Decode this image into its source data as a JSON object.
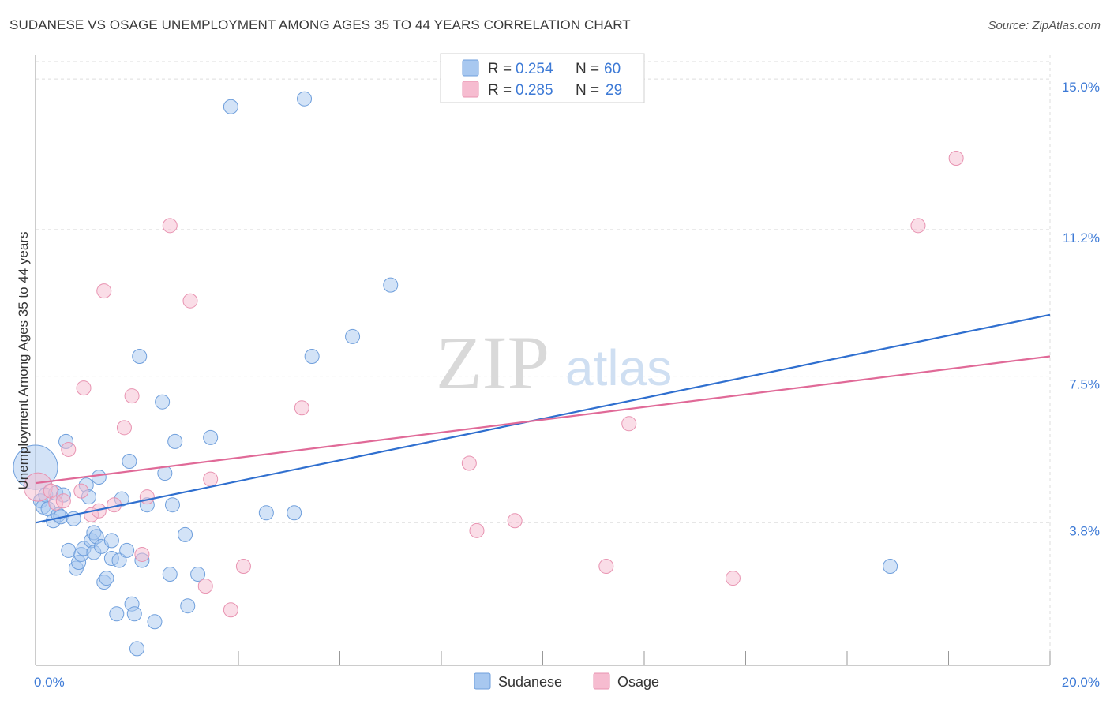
{
  "title": "SUDANESE VS OSAGE UNEMPLOYMENT AMONG AGES 35 TO 44 YEARS CORRELATION CHART",
  "source": "Source: ZipAtlas.com",
  "watermark": {
    "zip": "ZIP",
    "atlas": "atlas"
  },
  "legend": {
    "r_label": "R =",
    "n_label": "N =",
    "rows": [
      {
        "r": "0.254",
        "n": "60"
      },
      {
        "r": "0.285",
        "n": "29"
      }
    ]
  },
  "colors": {
    "sudanese_fill": "#a8c8f0",
    "sudanese_stroke": "#6f9fdc",
    "sudanese_line": "#2f6fcf",
    "osage_fill": "#f6bcd0",
    "osage_stroke": "#e893b1",
    "osage_line": "#e06a98",
    "tick_text": "#3d7ad6",
    "grid": "#dddddd"
  },
  "chart_data": {
    "type": "scatter",
    "title": "SUDANESE VS OSAGE UNEMPLOYMENT AMONG AGES 35 TO 44 YEARS CORRELATION CHART",
    "xlabel": "",
    "ylabel": "Unemployment Among Ages 35 to 44 years",
    "xlim": [
      0,
      20
    ],
    "ylim": [
      0.2,
      15.6
    ],
    "x_tick_labels": [
      "0.0%",
      "20.0%"
    ],
    "y_ticks": [
      3.8,
      7.5,
      11.2,
      15.0
    ],
    "y_tick_labels": [
      "3.8%",
      "7.5%",
      "11.2%",
      "15.0%"
    ],
    "grid": true,
    "legend_position": "top-center",
    "series": [
      {
        "name": "Sudanese",
        "r": 0.254,
        "n": 60,
        "trend": {
          "x": [
            0,
            20
          ],
          "y": [
            3.8,
            9.05
          ]
        },
        "points": [
          [
            0.0,
            5.2,
            28
          ],
          [
            0.1,
            4.35,
            9
          ],
          [
            0.15,
            4.2,
            9
          ],
          [
            0.2,
            4.5,
            9
          ],
          [
            0.25,
            4.15,
            9
          ],
          [
            0.35,
            3.85,
            9
          ],
          [
            0.4,
            4.55,
            9
          ],
          [
            0.45,
            4.0,
            9
          ],
          [
            0.5,
            3.95,
            9
          ],
          [
            0.55,
            4.5,
            9
          ],
          [
            0.6,
            5.85,
            9
          ],
          [
            0.65,
            3.1,
            9
          ],
          [
            0.75,
            3.9,
            9
          ],
          [
            0.8,
            2.65,
            9
          ],
          [
            0.85,
            2.8,
            9
          ],
          [
            0.9,
            3.0,
            9
          ],
          [
            0.95,
            3.15,
            9
          ],
          [
            1.0,
            4.75,
            9
          ],
          [
            1.05,
            4.45,
            9
          ],
          [
            1.1,
            3.35,
            9
          ],
          [
            1.15,
            3.05,
            9
          ],
          [
            1.15,
            3.55,
            9
          ],
          [
            1.2,
            3.45,
            9
          ],
          [
            1.25,
            4.95,
            9
          ],
          [
            1.3,
            3.2,
            9
          ],
          [
            1.35,
            2.3,
            9
          ],
          [
            1.4,
            2.4,
            9
          ],
          [
            1.5,
            3.35,
            9
          ],
          [
            1.5,
            2.9,
            9
          ],
          [
            1.6,
            1.5,
            9
          ],
          [
            1.65,
            2.85,
            9
          ],
          [
            1.7,
            4.4,
            9
          ],
          [
            1.8,
            3.1,
            9
          ],
          [
            1.85,
            5.35,
            9
          ],
          [
            1.9,
            1.75,
            9
          ],
          [
            1.95,
            1.5,
            9
          ],
          [
            2.0,
            0.62,
            9
          ],
          [
            2.05,
            8.0,
            9
          ],
          [
            2.1,
            2.85,
            9
          ],
          [
            2.2,
            4.25,
            9
          ],
          [
            2.35,
            1.3,
            9
          ],
          [
            2.5,
            6.85,
            9
          ],
          [
            2.55,
            5.05,
            9
          ],
          [
            2.65,
            2.5,
            9
          ],
          [
            2.7,
            4.25,
            9
          ],
          [
            2.75,
            5.85,
            9
          ],
          [
            2.95,
            3.5,
            9
          ],
          [
            3.0,
            1.7,
            9
          ],
          [
            3.2,
            2.5,
            9
          ],
          [
            3.45,
            5.95,
            9
          ],
          [
            3.85,
            14.3,
            9
          ],
          [
            4.55,
            4.05,
            9
          ],
          [
            5.1,
            4.05,
            9
          ],
          [
            5.3,
            14.5,
            9
          ],
          [
            5.45,
            8.0,
            9
          ],
          [
            6.25,
            8.5,
            9
          ],
          [
            7.0,
            9.8,
            9
          ],
          [
            16.85,
            2.7,
            9
          ]
        ]
      },
      {
        "name": "Osage",
        "r": 0.285,
        "n": 29,
        "trend": {
          "x": [
            0,
            20
          ],
          "y": [
            4.8,
            8.0
          ]
        },
        "points": [
          [
            0.05,
            4.7,
            18
          ],
          [
            0.3,
            4.6,
            9
          ],
          [
            0.4,
            4.3,
            9
          ],
          [
            0.55,
            4.35,
            9
          ],
          [
            0.65,
            5.65,
            9
          ],
          [
            0.9,
            4.6,
            9
          ],
          [
            0.95,
            7.2,
            9
          ],
          [
            1.1,
            4.0,
            9
          ],
          [
            1.25,
            4.1,
            9
          ],
          [
            1.35,
            9.65,
            9
          ],
          [
            1.55,
            4.25,
            9
          ],
          [
            1.75,
            6.2,
            9
          ],
          [
            1.9,
            7.0,
            9
          ],
          [
            2.1,
            3.0,
            9
          ],
          [
            2.2,
            4.45,
            9
          ],
          [
            2.65,
            11.3,
            9
          ],
          [
            3.05,
            9.4,
            9
          ],
          [
            3.35,
            2.2,
            9
          ],
          [
            3.45,
            4.9,
            9
          ],
          [
            3.85,
            1.6,
            9
          ],
          [
            4.1,
            2.7,
            9
          ],
          [
            5.25,
            6.7,
            9
          ],
          [
            8.55,
            5.3,
            9
          ],
          [
            8.7,
            3.6,
            9
          ],
          [
            9.45,
            3.85,
            9
          ],
          [
            11.25,
            2.7,
            9
          ],
          [
            11.7,
            6.3,
            9
          ],
          [
            13.75,
            2.4,
            9
          ],
          [
            17.4,
            11.3,
            9
          ],
          [
            18.15,
            13.0,
            9
          ]
        ]
      }
    ]
  },
  "bottom_legend": [
    "Sudanese",
    "Osage"
  ]
}
